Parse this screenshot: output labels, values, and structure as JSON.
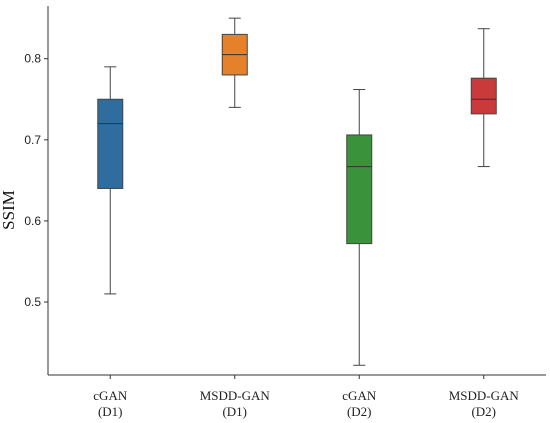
{
  "chart_data": {
    "type": "box",
    "ylabel": "SSIM",
    "xlabel": "",
    "title": "",
    "ylim": [
      0.41,
      0.865
    ],
    "yticks": [
      0.5,
      0.6,
      0.7,
      0.8
    ],
    "grid": false,
    "categories": [
      {
        "line1": "cGAN",
        "line2": "(D1)"
      },
      {
        "line1": "MSDD-GAN",
        "line2": "(D1)"
      },
      {
        "line1": "cGAN",
        "line2": "(D2)"
      },
      {
        "line1": "MSDD-GAN",
        "line2": "(D2)"
      }
    ],
    "boxes": [
      {
        "whislo": 0.51,
        "q1": 0.64,
        "med": 0.72,
        "q3": 0.75,
        "whishi": 0.79,
        "color": "#2f6d9f"
      },
      {
        "whislo": 0.74,
        "q1": 0.78,
        "med": 0.805,
        "q3": 0.83,
        "whishi": 0.85,
        "color": "#e4812a"
      },
      {
        "whislo": 0.422,
        "q1": 0.572,
        "med": 0.667,
        "q3": 0.706,
        "whishi": 0.762,
        "color": "#3a923a"
      },
      {
        "whislo": 0.667,
        "q1": 0.732,
        "med": 0.75,
        "q3": 0.776,
        "whishi": 0.837,
        "color": "#c93b3b"
      }
    ]
  }
}
